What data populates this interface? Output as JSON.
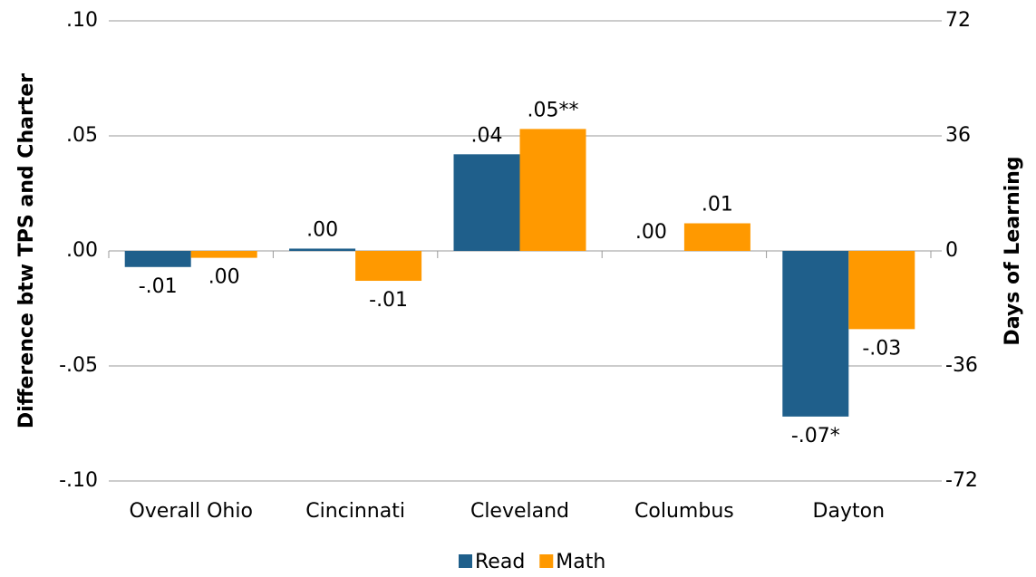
{
  "chart_data": {
    "type": "bar",
    "y_label": "Difference btw TPS and Charter",
    "y2_label": "Days of Learning",
    "categories": [
      "Overall Ohio",
      "Cincinnati",
      "Cleveland",
      "Columbus",
      "Dayton"
    ],
    "series": [
      {
        "name": "Read",
        "color": "#1f5f8b",
        "values": [
          -0.007,
          0.001,
          0.042,
          0,
          -0.072
        ],
        "value_labels": [
          "-.01",
          ".00",
          ".04",
          ".00",
          "-.07*"
        ]
      },
      {
        "name": "Math",
        "color": "#ff9900",
        "values": [
          -0.003,
          -0.013,
          0.053,
          0.012,
          -0.034
        ],
        "value_labels": [
          ".00",
          "-.01",
          ".05**",
          ".01",
          "-.03"
        ]
      }
    ],
    "ylim": [
      -0.1,
      0.1
    ],
    "yticks": [
      {
        "value": -0.1,
        "label": "-.10"
      },
      {
        "value": -0.05,
        "label": "-.05"
      },
      {
        "value": 0,
        "label": ".00"
      },
      {
        "value": 0.05,
        "label": ".05"
      },
      {
        "value": 0.1,
        "label": ".10"
      }
    ],
    "y2lim": [
      -72,
      72
    ],
    "y2ticks": [
      -72,
      -36,
      0,
      36,
      72
    ],
    "grid": true,
    "legend": "bottom"
  }
}
